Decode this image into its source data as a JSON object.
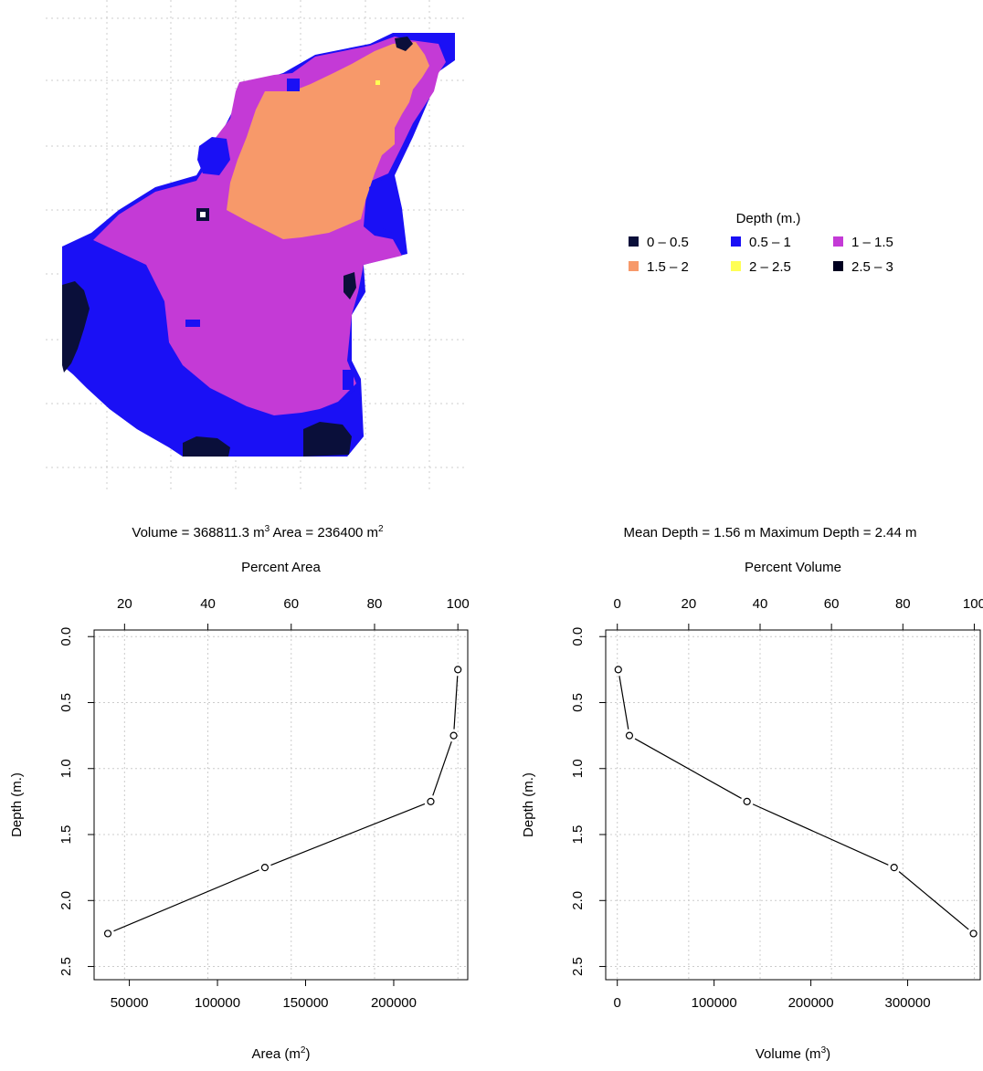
{
  "map": {
    "legend_title": "Depth (m.)",
    "legend": [
      {
        "label": "0 – 0.5",
        "color": "#0a0f3a"
      },
      {
        "label": "0.5 – 1",
        "color": "#1a10f5"
      },
      {
        "label": "1 – 1.5",
        "color": "#c43ad6"
      },
      {
        "label": "1.5 – 2",
        "color": "#f7996a"
      },
      {
        "label": "2 – 2.5",
        "color": "#ffff55"
      },
      {
        "label": "2.5 – 3",
        "color": "#000020"
      }
    ]
  },
  "summary_left": {
    "volume_label": "Volume = 368811.3 m",
    "volume_exp": "3",
    "area_label": "Area = 236400 m",
    "area_exp": "2"
  },
  "summary_right": "Mean Depth = 1.56 m   Maximum Depth = 2.44 m",
  "chart_data": [
    {
      "type": "line",
      "title": "",
      "xlabel": "Area (m",
      "xlabel_exp": "2",
      "xlabel_tail": ")",
      "top_label": "Percent Area",
      "ylabel": "Depth (m.)",
      "x": [
        37800,
        126900,
        221000,
        234000,
        236400
      ],
      "y": [
        2.25,
        1.75,
        1.25,
        0.75,
        0.25
      ],
      "xlim": [
        30000,
        242000
      ],
      "ylim": [
        2.6,
        -0.05
      ],
      "xticks": [
        50000,
        100000,
        150000,
        200000
      ],
      "xtick_labels": [
        "50000",
        "100000",
        "150000",
        "200000"
      ],
      "top_ticks": [
        20,
        40,
        60,
        80,
        100
      ],
      "top_tick_labels": [
        "20",
        "40",
        "60",
        "80",
        "100"
      ],
      "top_scale": 236400,
      "yticks": [
        0,
        0.5,
        1,
        1.5,
        2,
        2.5
      ],
      "ytick_labels": [
        "0.0",
        "0.5",
        "1.0",
        "1.5",
        "2.0",
        "2.5"
      ],
      "grid": true
    },
    {
      "type": "line",
      "title": "",
      "xlabel": "Volume (m",
      "xlabel_exp": "3",
      "xlabel_tail": ")",
      "top_label": "Percent Volume",
      "ylabel": "Depth (m.)",
      "x": [
        1000,
        12500,
        134000,
        286000,
        368000
      ],
      "y": [
        0.25,
        0.75,
        1.25,
        1.75,
        2.25
      ],
      "xlim": [
        -12000,
        375000
      ],
      "ylim": [
        2.6,
        -0.05
      ],
      "xticks": [
        0,
        100000,
        200000,
        300000
      ],
      "xtick_labels": [
        "0",
        "100000",
        "200000",
        "300000"
      ],
      "top_ticks": [
        0,
        20,
        40,
        60,
        80,
        100
      ],
      "top_tick_labels": [
        "0",
        "20",
        "40",
        "60",
        "80",
        "100"
      ],
      "top_scale": 368811.3,
      "yticks": [
        0,
        0.5,
        1,
        1.5,
        2,
        2.5
      ],
      "ytick_labels": [
        "0.0",
        "0.5",
        "1.0",
        "1.5",
        "2.0",
        "2.5"
      ],
      "grid": true
    }
  ]
}
